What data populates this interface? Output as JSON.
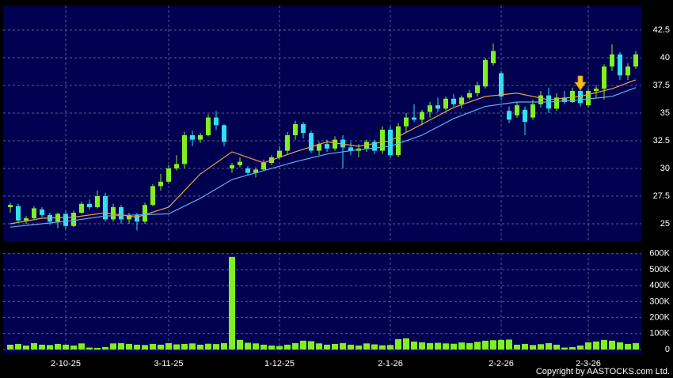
{
  "chart_data": [
    {
      "type": "candlestick",
      "categories": [
        null,
        null,
        null,
        null,
        null,
        null,
        null,
        "2-10-25",
        null,
        null,
        null,
        null,
        null,
        null,
        null,
        null,
        null,
        null,
        null,
        null,
        "3-11-25",
        null,
        null,
        null,
        null,
        null,
        null,
        null,
        null,
        null,
        null,
        null,
        null,
        null,
        "1-12-25",
        null,
        null,
        null,
        null,
        null,
        null,
        null,
        null,
        null,
        null,
        null,
        null,
        null,
        "2-1-26",
        null,
        null,
        null,
        null,
        null,
        null,
        null,
        null,
        null,
        null,
        null,
        null,
        null,
        "2-2-26",
        null,
        null,
        null,
        null,
        null,
        null,
        null,
        null,
        null,
        null,
        "2-3-26",
        null,
        null,
        null,
        null,
        null,
        null
      ],
      "open": [
        26.5,
        26.6,
        25.3,
        25.5,
        26.3,
        25.8,
        25.2,
        25.9,
        24.8,
        26.0,
        26.8,
        26.5,
        27.5,
        25.4,
        26.5,
        25.4,
        25.8,
        25.2,
        26.7,
        28.4,
        28.8,
        30.0,
        30.4,
        33.0,
        32.6,
        33.0,
        34.6,
        33.9,
        30.0,
        30.3,
        30.0,
        29.6,
        29.9,
        30.5,
        31.0,
        31.6,
        33.0,
        34.0,
        33.2,
        31.6,
        32.2,
        31.8,
        32.6,
        31.9,
        31.6,
        31.8,
        32.4,
        31.6,
        33.5,
        31.2,
        33.8,
        34.6,
        34.4,
        35.1,
        35.7,
        35.4,
        36.3,
        35.8,
        36.4,
        36.8,
        37.4,
        39.5,
        38.6,
        35.2,
        34.8,
        35.3,
        34.6,
        35.8,
        36.6,
        35.4,
        36.4,
        36.0,
        37.0,
        35.7,
        37.0,
        37.2,
        39.2,
        40.3,
        38.4,
        39.2
      ],
      "high": [
        26.9,
        26.8,
        25.7,
        26.6,
        26.5,
        26.0,
        26.0,
        26.2,
        26.2,
        27.0,
        27.2,
        28.0,
        27.8,
        26.8,
        26.7,
        26.0,
        26.0,
        26.9,
        28.6,
        29.5,
        30.3,
        31.2,
        33.3,
        33.4,
        33.2,
        34.9,
        35.2,
        34.0,
        30.5,
        31.0,
        30.2,
        30.1,
        30.8,
        31.2,
        32.0,
        33.3,
        34.3,
        34.2,
        33.4,
        32.4,
        32.6,
        32.9,
        33.0,
        32.4,
        32.2,
        32.6,
        32.6,
        33.8,
        33.8,
        34.1,
        35.0,
        35.8,
        35.3,
        36.0,
        36.4,
        36.5,
        36.7,
        36.6,
        37.1,
        37.8,
        40.0,
        41.3,
        38.8,
        35.6,
        36.0,
        35.6,
        36.2,
        37.0,
        37.3,
        36.8,
        37.0,
        37.3,
        37.3,
        37.2,
        37.5,
        39.4,
        41.2,
        40.5,
        39.5,
        40.6
      ],
      "low": [
        26.0,
        25.1,
        25.0,
        25.4,
        25.6,
        24.9,
        24.6,
        24.5,
        24.7,
        25.9,
        26.3,
        26.4,
        25.2,
        25.2,
        25.0,
        25.0,
        24.4,
        25.0,
        26.6,
        28.0,
        28.6,
        29.8,
        30.0,
        32.0,
        32.3,
        32.9,
        33.5,
        32.0,
        29.6,
        30.1,
        29.4,
        29.2,
        29.8,
        30.3,
        30.8,
        31.3,
        32.6,
        32.7,
        31.4,
        31.2,
        31.5,
        31.6,
        30.0,
        31.2,
        31.0,
        31.5,
        31.3,
        31.3,
        31.0,
        31.0,
        33.2,
        34.2,
        33.9,
        34.6,
        35.1,
        35.2,
        35.6,
        35.4,
        36.2,
        36.5,
        37.2,
        39.3,
        36.2,
        34.1,
        34.6,
        33.0,
        34.4,
        35.5,
        35.0,
        35.2,
        35.8,
        35.9,
        35.6,
        35.5,
        36.4,
        36.2,
        38.8,
        38.0,
        38.0,
        39.0
      ],
      "close": [
        26.7,
        25.3,
        25.5,
        26.4,
        25.8,
        25.2,
        25.9,
        24.8,
        26.0,
        26.8,
        26.5,
        27.5,
        25.4,
        26.5,
        25.4,
        25.8,
        25.2,
        26.7,
        28.4,
        28.8,
        30.0,
        30.4,
        33.0,
        32.6,
        33.0,
        34.6,
        33.9,
        32.4,
        30.3,
        30.6,
        29.6,
        29.9,
        30.5,
        31.0,
        31.6,
        33.0,
        34.0,
        33.2,
        31.6,
        32.2,
        31.8,
        32.6,
        31.9,
        31.6,
        31.8,
        32.4,
        31.6,
        33.5,
        31.2,
        33.8,
        34.6,
        34.4,
        35.1,
        35.7,
        35.4,
        36.3,
        35.8,
        36.4,
        36.8,
        37.5,
        39.8,
        40.6,
        36.5,
        34.4,
        35.7,
        34.2,
        35.8,
        36.6,
        35.4,
        36.4,
        36.0,
        37.0,
        35.9,
        37.0,
        37.2,
        39.2,
        40.3,
        38.4,
        39.2,
        40.3
      ],
      "up_color": "#80f020",
      "down_color": "#30e0f0",
      "series": [
        {
          "color": "#f0a040",
          "x": [
            0,
            4,
            8,
            12,
            16,
            20,
            24,
            28,
            32,
            36,
            40,
            44,
            48,
            52,
            56,
            60,
            64,
            68,
            72,
            76,
            79
          ],
          "values": [
            25.0,
            25.5,
            25.6,
            26.0,
            25.6,
            26.5,
            29.5,
            31.5,
            30.5,
            31.5,
            32.4,
            32.0,
            32.5,
            34.0,
            35.5,
            36.5,
            36.8,
            36.2,
            36.5,
            37.2,
            38.0
          ]
        },
        {
          "color": "#60b0f0",
          "x": [
            0,
            4,
            8,
            12,
            16,
            20,
            24,
            28,
            32,
            36,
            40,
            44,
            48,
            52,
            56,
            60,
            64,
            68,
            72,
            76,
            79
          ],
          "values": [
            24.7,
            25.0,
            25.3,
            25.7,
            25.8,
            25.9,
            27.3,
            29.0,
            29.8,
            30.6,
            31.3,
            31.7,
            32.0,
            33.0,
            34.5,
            35.6,
            36.0,
            36.0,
            36.2,
            36.5,
            37.3
          ]
        }
      ],
      "ylim": [
        23.43,
        44.71
      ],
      "yticks": [
        25,
        27.5,
        30,
        32.5,
        35,
        37.5,
        40,
        42.5
      ],
      "grid": true
    },
    {
      "type": "bar",
      "color": "#80f020",
      "values": [
        30000,
        35000,
        25000,
        40000,
        30000,
        28000,
        35000,
        30000,
        25000,
        38000,
        12000,
        10000,
        15000,
        38000,
        40000,
        35000,
        30000,
        28000,
        35000,
        30000,
        40000,
        32000,
        35000,
        38000,
        30000,
        36000,
        34000,
        40000,
        580000,
        60000,
        42000,
        38000,
        30000,
        25000,
        22000,
        30000,
        40000,
        55000,
        52000,
        38000,
        30000,
        35000,
        40000,
        30000,
        25000,
        38000,
        32000,
        26000,
        28000,
        65000,
        70000,
        50000,
        45000,
        40000,
        42000,
        38000,
        36000,
        44000,
        40000,
        48000,
        55000,
        58000,
        60000,
        62000,
        30000,
        35000,
        28000,
        33000,
        40000,
        30000,
        12000,
        15000,
        25000,
        45000,
        50000,
        60000,
        55000,
        45000,
        35000,
        40000
      ],
      "ylim": [
        -25000,
        604000
      ],
      "yticks": [
        {
          "value": 0,
          "label": "0"
        },
        {
          "value": 100000,
          "label": "100K"
        },
        {
          "value": 200000,
          "label": "200K"
        },
        {
          "value": 300000,
          "label": "300K"
        },
        {
          "value": 400000,
          "label": "400K"
        },
        {
          "value": 500000,
          "label": "500K"
        },
        {
          "value": 600000,
          "label": "600K"
        }
      ],
      "grid": true
    }
  ],
  "copyright": "Copyright by AASTOCKS.com Ltd."
}
